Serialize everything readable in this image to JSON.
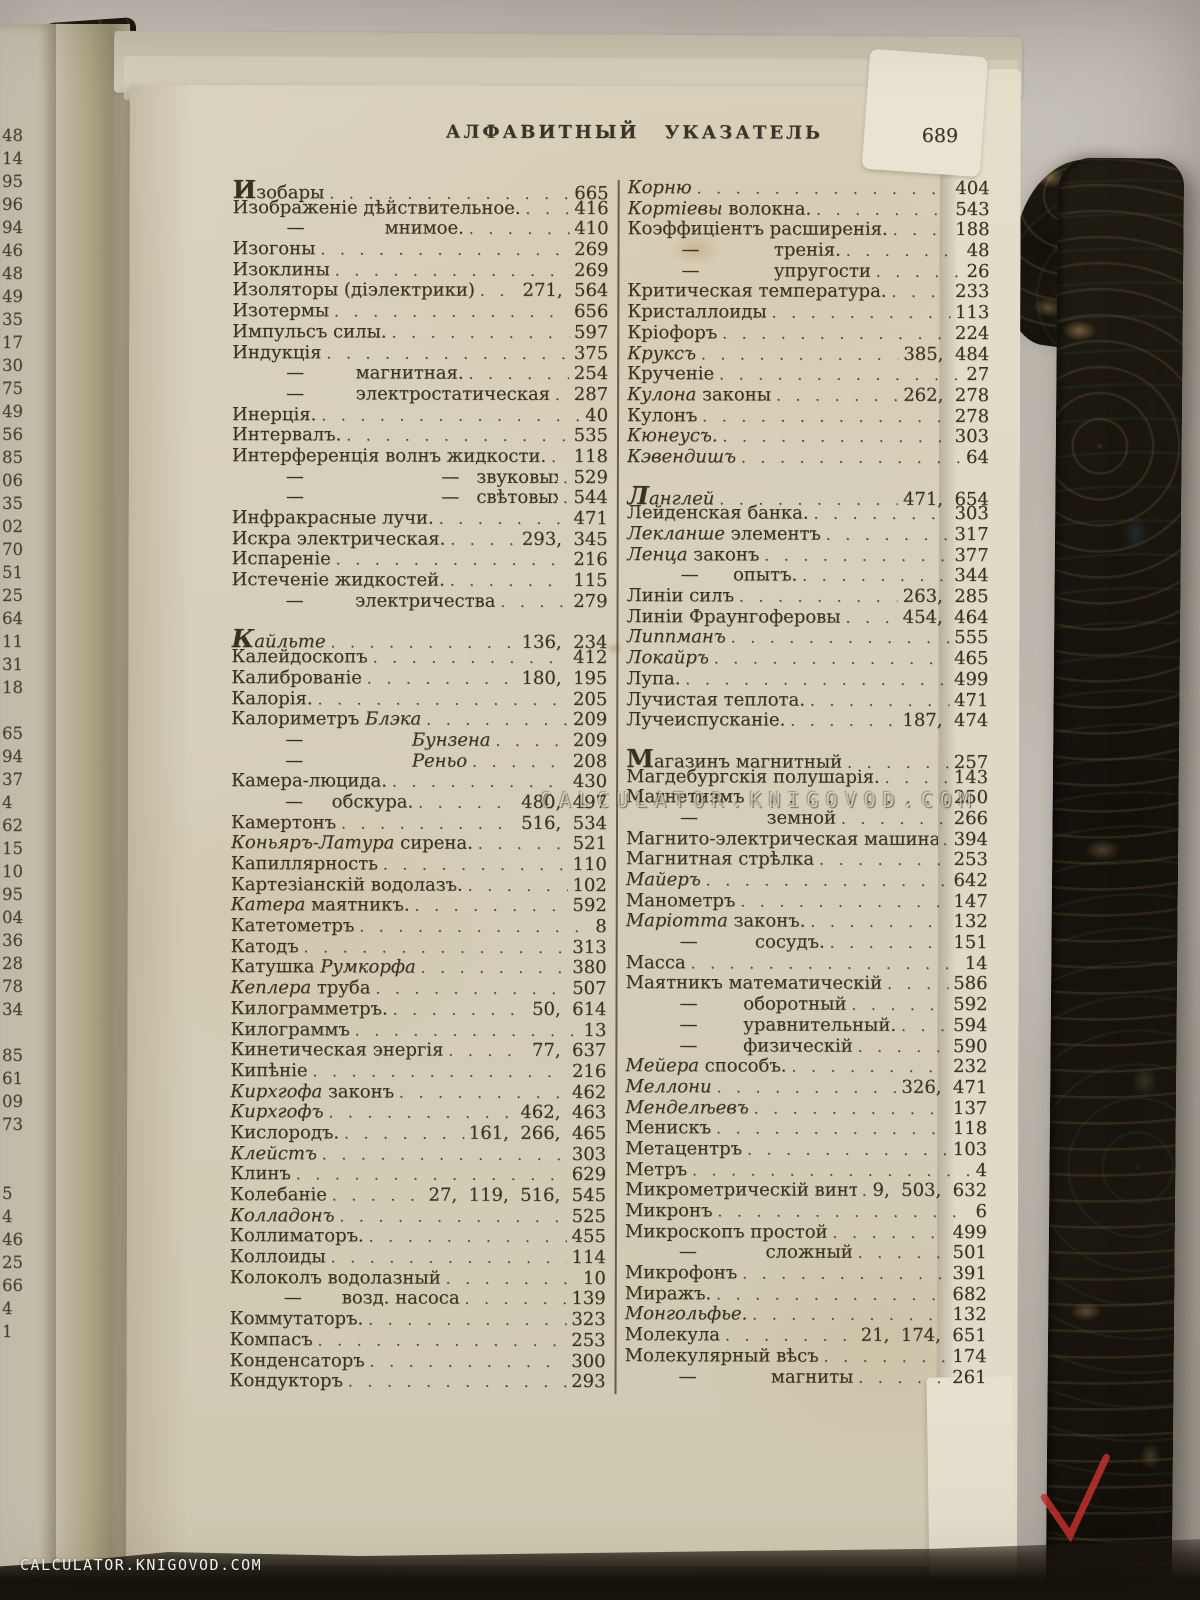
{
  "header": {
    "title": "АЛФАВИТНЫЙ УКАЗАТЕЛЬ",
    "page_number": "689"
  },
  "watermark_center": "CALCULATOR.KNIGOVOD.COM",
  "watermark_corner": "CALCULATOR.KNIGOVOD.COM",
  "red_check": {
    "color": "#c5302a"
  },
  "left_edge_numbers": [
    "48",
    "14",
    "95",
    "96",
    "94",
    "46",
    "48",
    "49",
    "35",
    "17",
    "30",
    "75",
    "49",
    "56",
    "85",
    "06",
    "35",
    "02",
    "70",
    "51",
    "25",
    "64",
    "11",
    "31",
    "18",
    "",
    "65",
    "94",
    "37",
    "4",
    "62",
    "15",
    "10",
    "95",
    "04",
    "36",
    "28",
    "78",
    "34",
    "",
    "85",
    "61",
    "09",
    "73",
    "",
    "",
    "5",
    "4",
    "46",
    "25",
    "66",
    "4",
    "1"
  ],
  "columns": {
    "left": [
      {
        "L": 1,
        "s": [
          [
            "Изобары",
            0
          ]
        ],
        "p": "665"
      },
      {
        "s": [
          [
            "Изображеніе дѣйствительное.",
            0
          ]
        ],
        "p": "416"
      },
      {
        "m": 1,
        "s": [
          [
            "—              мнимое.",
            0
          ]
        ],
        "p": "410"
      },
      {
        "s": [
          [
            "Изогоны",
            0
          ]
        ],
        "p": "269"
      },
      {
        "s": [
          [
            "Изоклины",
            0
          ]
        ],
        "p": "269"
      },
      {
        "s": [
          [
            "Изоляторы (діэлектрики)",
            0
          ]
        ],
        "p": "271,  564"
      },
      {
        "s": [
          [
            "Изотермы",
            0
          ]
        ],
        "p": "656"
      },
      {
        "s": [
          [
            "Импульсъ силы.",
            0
          ]
        ],
        "p": "597"
      },
      {
        "s": [
          [
            "Индукція",
            0
          ]
        ],
        "p": "375"
      },
      {
        "m": 1,
        "s": [
          [
            "—         магнитная.",
            0
          ]
        ],
        "p": "254"
      },
      {
        "m": 1,
        "s": [
          [
            "—         электростатическая",
            0
          ]
        ],
        "p": "287"
      },
      {
        "s": [
          [
            "Инерція.",
            0
          ]
        ],
        "p": "40"
      },
      {
        "s": [
          [
            "Интервалъ.",
            0
          ]
        ],
        "p": "535"
      },
      {
        "s": [
          [
            "Интерференція волнъ жидкости.",
            0
          ]
        ],
        "p": "118"
      },
      {
        "m": 2,
        "s": [
          [
            "—                        —   звуковыхъ.",
            0
          ]
        ],
        "p": "529"
      },
      {
        "m": 2,
        "s": [
          [
            "—                        —   свѣтовыхъ.",
            0
          ]
        ],
        "p": "544"
      },
      {
        "s": [
          [
            "Инфракрасные лучи.",
            0
          ]
        ],
        "p": "471"
      },
      {
        "s": [
          [
            "Искра электрическая.",
            0
          ]
        ],
        "p": "293,  345"
      },
      {
        "s": [
          [
            "Испареніе",
            0
          ]
        ],
        "p": "216"
      },
      {
        "s": [
          [
            "Истеченіе жидкостей.",
            0
          ]
        ],
        "p": "115"
      },
      {
        "m": 1,
        "s": [
          [
            "—         электричества",
            0
          ]
        ],
        "p": "279"
      },
      {
        "g": 1,
        "L": 1,
        "s": [
          [
            "Кайльте",
            1
          ]
        ],
        "p": "136,  234"
      },
      {
        "s": [
          [
            "Калейдоскопъ",
            0
          ]
        ],
        "p": "412"
      },
      {
        "s": [
          [
            "Калиброваніе",
            0
          ]
        ],
        "p": "180,  195"
      },
      {
        "s": [
          [
            "Калорія.",
            0
          ]
        ],
        "p": "205"
      },
      {
        "s": [
          [
            "Калориметръ ",
            0
          ],
          [
            "Блэка",
            1
          ]
        ],
        "p": "209"
      },
      {
        "m": 1,
        "s": [
          [
            "—                   ",
            0
          ],
          [
            "Бунзена",
            1
          ]
        ],
        "p": "209"
      },
      {
        "m": 1,
        "s": [
          [
            "—                   ",
            0
          ],
          [
            "Реньо",
            1
          ]
        ],
        "p": "208"
      },
      {
        "s": [
          [
            "Камера-люцида.",
            0
          ]
        ],
        "p": "430"
      },
      {
        "m": 1,
        "s": [
          [
            "—     обскура.",
            0
          ]
        ],
        "p": "480,  497"
      },
      {
        "s": [
          [
            "Камертонъ",
            0
          ]
        ],
        "p": "516,  534"
      },
      {
        "s": [
          [
            "Коньяръ-Латура",
            1
          ],
          [
            " сирена.",
            0
          ]
        ],
        "p": "521"
      },
      {
        "s": [
          [
            "Капиллярность",
            0
          ]
        ],
        "p": "110"
      },
      {
        "s": [
          [
            "Картезіанскій водолазъ.",
            0
          ]
        ],
        "p": "102"
      },
      {
        "s": [
          [
            "Катера",
            1
          ],
          [
            " маятникъ.",
            0
          ]
        ],
        "p": "592"
      },
      {
        "s": [
          [
            "Катетометръ",
            0
          ]
        ],
        "p": "8"
      },
      {
        "s": [
          [
            "Катодъ",
            0
          ]
        ],
        "p": "313"
      },
      {
        "s": [
          [
            "Катушка ",
            0
          ],
          [
            "Румкорфа",
            1
          ]
        ],
        "p": "380"
      },
      {
        "s": [
          [
            "Кеплера",
            1
          ],
          [
            " труба",
            0
          ]
        ],
        "p": "507"
      },
      {
        "s": [
          [
            "Килограмметръ.",
            0
          ]
        ],
        "p": "50,  614"
      },
      {
        "s": [
          [
            "Килограммъ",
            0
          ]
        ],
        "p": "13"
      },
      {
        "s": [
          [
            "Кинетическая энергія",
            0
          ]
        ],
        "p": "77,  637"
      },
      {
        "s": [
          [
            "Кипѣніе",
            0
          ]
        ],
        "p": "216"
      },
      {
        "s": [
          [
            "Кирхгофа",
            1
          ],
          [
            " законъ",
            0
          ]
        ],
        "p": "462"
      },
      {
        "s": [
          [
            "Кирхгофъ",
            1
          ]
        ],
        "p": "462,  463"
      },
      {
        "s": [
          [
            "Кислородъ.",
            0
          ]
        ],
        "p": "161,  266,  465"
      },
      {
        "s": [
          [
            "Клейстъ",
            1
          ]
        ],
        "p": "303"
      },
      {
        "s": [
          [
            "Клинъ",
            0
          ]
        ],
        "p": "629"
      },
      {
        "s": [
          [
            "Колебаніе",
            0
          ]
        ],
        "p": "27,  119,  516,  545"
      },
      {
        "s": [
          [
            "Колладонъ",
            1
          ]
        ],
        "p": "525"
      },
      {
        "s": [
          [
            "Коллиматоръ.",
            0
          ]
        ],
        "p": "455"
      },
      {
        "s": [
          [
            "Коллоиды",
            0
          ]
        ],
        "p": "114"
      },
      {
        "s": [
          [
            "Колоколъ водолазный",
            0
          ]
        ],
        "p": "10"
      },
      {
        "m": 1,
        "s": [
          [
            "—       возд. насоса",
            0
          ]
        ],
        "p": "139"
      },
      {
        "s": [
          [
            "Коммутаторъ.",
            0
          ]
        ],
        "p": "323"
      },
      {
        "s": [
          [
            "Компасъ",
            0
          ]
        ],
        "p": "253"
      },
      {
        "s": [
          [
            "Конденсаторъ",
            0
          ]
        ],
        "p": "300"
      },
      {
        "s": [
          [
            "Кондукторъ",
            0
          ]
        ],
        "p": "293"
      }
    ],
    "right": [
      {
        "s": [
          [
            "Корню",
            1
          ]
        ],
        "p": "404"
      },
      {
        "s": [
          [
            "Кортіевы",
            1
          ],
          [
            " волокна.",
            0
          ]
        ],
        "p": "543"
      },
      {
        "s": [
          [
            "Коэффиціентъ расширенія.",
            0
          ]
        ],
        "p": "188"
      },
      {
        "m": 1,
        "s": [
          [
            "—             тренія.",
            0
          ]
        ],
        "p": "48"
      },
      {
        "m": 1,
        "s": [
          [
            "—             упругости",
            0
          ]
        ],
        "p": "26"
      },
      {
        "s": [
          [
            "Критическая температура.",
            0
          ]
        ],
        "p": "233"
      },
      {
        "s": [
          [
            "Кристаллоиды",
            0
          ]
        ],
        "p": "113"
      },
      {
        "s": [
          [
            "Кріофоръ",
            0
          ]
        ],
        "p": "224"
      },
      {
        "s": [
          [
            "Круксъ",
            1
          ]
        ],
        "p": "385,  484"
      },
      {
        "s": [
          [
            "Крученіе",
            0
          ]
        ],
        "p": "27"
      },
      {
        "s": [
          [
            "Кулона",
            1
          ],
          [
            " законы",
            0
          ]
        ],
        "p": "262,  278"
      },
      {
        "s": [
          [
            "Кулонъ",
            0
          ]
        ],
        "p": "278"
      },
      {
        "s": [
          [
            "Кюнеусъ.",
            1
          ]
        ],
        "p": "303"
      },
      {
        "s": [
          [
            "Кэвендишъ",
            1
          ]
        ],
        "p": "64"
      },
      {
        "g": 1,
        "L": 1,
        "s": [
          [
            "Ланглей",
            1
          ]
        ],
        "p": "471,  654"
      },
      {
        "s": [
          [
            "Лейденская банка.",
            0
          ]
        ],
        "p": "303"
      },
      {
        "s": [
          [
            "Лекланше",
            1
          ],
          [
            " элементъ",
            0
          ]
        ],
        "p": "317"
      },
      {
        "s": [
          [
            "Ленца",
            1
          ],
          [
            " законъ",
            0
          ]
        ],
        "p": "377"
      },
      {
        "m": 1,
        "s": [
          [
            "—      опытъ.",
            0
          ]
        ],
        "p": "344"
      },
      {
        "s": [
          [
            "Линіи силъ",
            0
          ]
        ],
        "p": "263,  285"
      },
      {
        "s": [
          [
            "Линіи Фраунгоферовы",
            0
          ]
        ],
        "p": "454,  464"
      },
      {
        "s": [
          [
            "Липпманъ",
            1
          ]
        ],
        "p": "555"
      },
      {
        "s": [
          [
            "Локайръ",
            1
          ]
        ],
        "p": "465"
      },
      {
        "s": [
          [
            "Лупа.",
            0
          ]
        ],
        "p": "499"
      },
      {
        "s": [
          [
            "Лучистая теплота.",
            0
          ]
        ],
        "p": "471"
      },
      {
        "s": [
          [
            "Лучеиспусканіе.",
            0
          ]
        ],
        "p": "187,  474"
      },
      {
        "g": 1,
        "L": 1,
        "s": [
          [
            "Магазинъ магнитный",
            0
          ]
        ],
        "p": "257"
      },
      {
        "s": [
          [
            "Магдебургскія полушарія.",
            0
          ]
        ],
        "p": "143"
      },
      {
        "s": [
          [
            "Магнетизмъ",
            0
          ]
        ],
        "p": "250"
      },
      {
        "m": 1,
        "s": [
          [
            "—            земной",
            0
          ]
        ],
        "p": "266"
      },
      {
        "s": [
          [
            "Магнито-электрическая машина.",
            0
          ]
        ],
        "p": "394"
      },
      {
        "s": [
          [
            "Магнитная стрѣлка",
            0
          ]
        ],
        "p": "253"
      },
      {
        "s": [
          [
            "Майеръ",
            1
          ]
        ],
        "p": "642"
      },
      {
        "s": [
          [
            "Манометръ",
            0
          ]
        ],
        "p": "147"
      },
      {
        "s": [
          [
            "Маріотта",
            1
          ],
          [
            " законъ.",
            0
          ]
        ],
        "p": "132"
      },
      {
        "m": 1,
        "s": [
          [
            "—          сосудъ.",
            0
          ]
        ],
        "p": "151"
      },
      {
        "s": [
          [
            "Масса",
            0
          ]
        ],
        "p": "14"
      },
      {
        "s": [
          [
            "Маятникъ математическій",
            0
          ]
        ],
        "p": "586"
      },
      {
        "m": 1,
        "s": [
          [
            "—        оборотный",
            0
          ]
        ],
        "p": "592"
      },
      {
        "m": 1,
        "s": [
          [
            "—        уравнительный.",
            0
          ]
        ],
        "p": "594"
      },
      {
        "m": 1,
        "s": [
          [
            "—        физическій",
            0
          ]
        ],
        "p": "590"
      },
      {
        "s": [
          [
            "Мейера",
            1
          ],
          [
            " способъ.",
            0
          ]
        ],
        "p": "232"
      },
      {
        "s": [
          [
            "Меллони",
            1
          ]
        ],
        "p": "326,  471"
      },
      {
        "s": [
          [
            "Менделѣевъ",
            1
          ]
        ],
        "p": "137"
      },
      {
        "s": [
          [
            "Менискъ",
            0
          ]
        ],
        "p": "118"
      },
      {
        "s": [
          [
            "Метацентръ",
            0
          ]
        ],
        "p": "103"
      },
      {
        "s": [
          [
            "Метръ",
            0
          ]
        ],
        "p": "4"
      },
      {
        "s": [
          [
            "Микрометрическій винтъ",
            0
          ]
        ],
        "p": "9,  503,  632"
      },
      {
        "s": [
          [
            "Микронъ",
            0
          ]
        ],
        "p": "6"
      },
      {
        "s": [
          [
            "Микроскопъ простой",
            0
          ]
        ],
        "p": "499"
      },
      {
        "m": 1,
        "s": [
          [
            "—            сложный",
            0
          ]
        ],
        "p": "501"
      },
      {
        "s": [
          [
            "Микрофонъ",
            0
          ]
        ],
        "p": "391"
      },
      {
        "s": [
          [
            "Миражъ.",
            0
          ]
        ],
        "p": "682"
      },
      {
        "s": [
          [
            "Монгольфье.",
            1
          ]
        ],
        "p": "132"
      },
      {
        "s": [
          [
            "Молекула",
            0
          ]
        ],
        "p": "21,  174,  651"
      },
      {
        "s": [
          [
            "Молекулярный вѣсъ",
            0
          ]
        ],
        "p": "174"
      },
      {
        "m": 1,
        "s": [
          [
            "—             магниты",
            0
          ]
        ],
        "p": "261"
      }
    ]
  }
}
